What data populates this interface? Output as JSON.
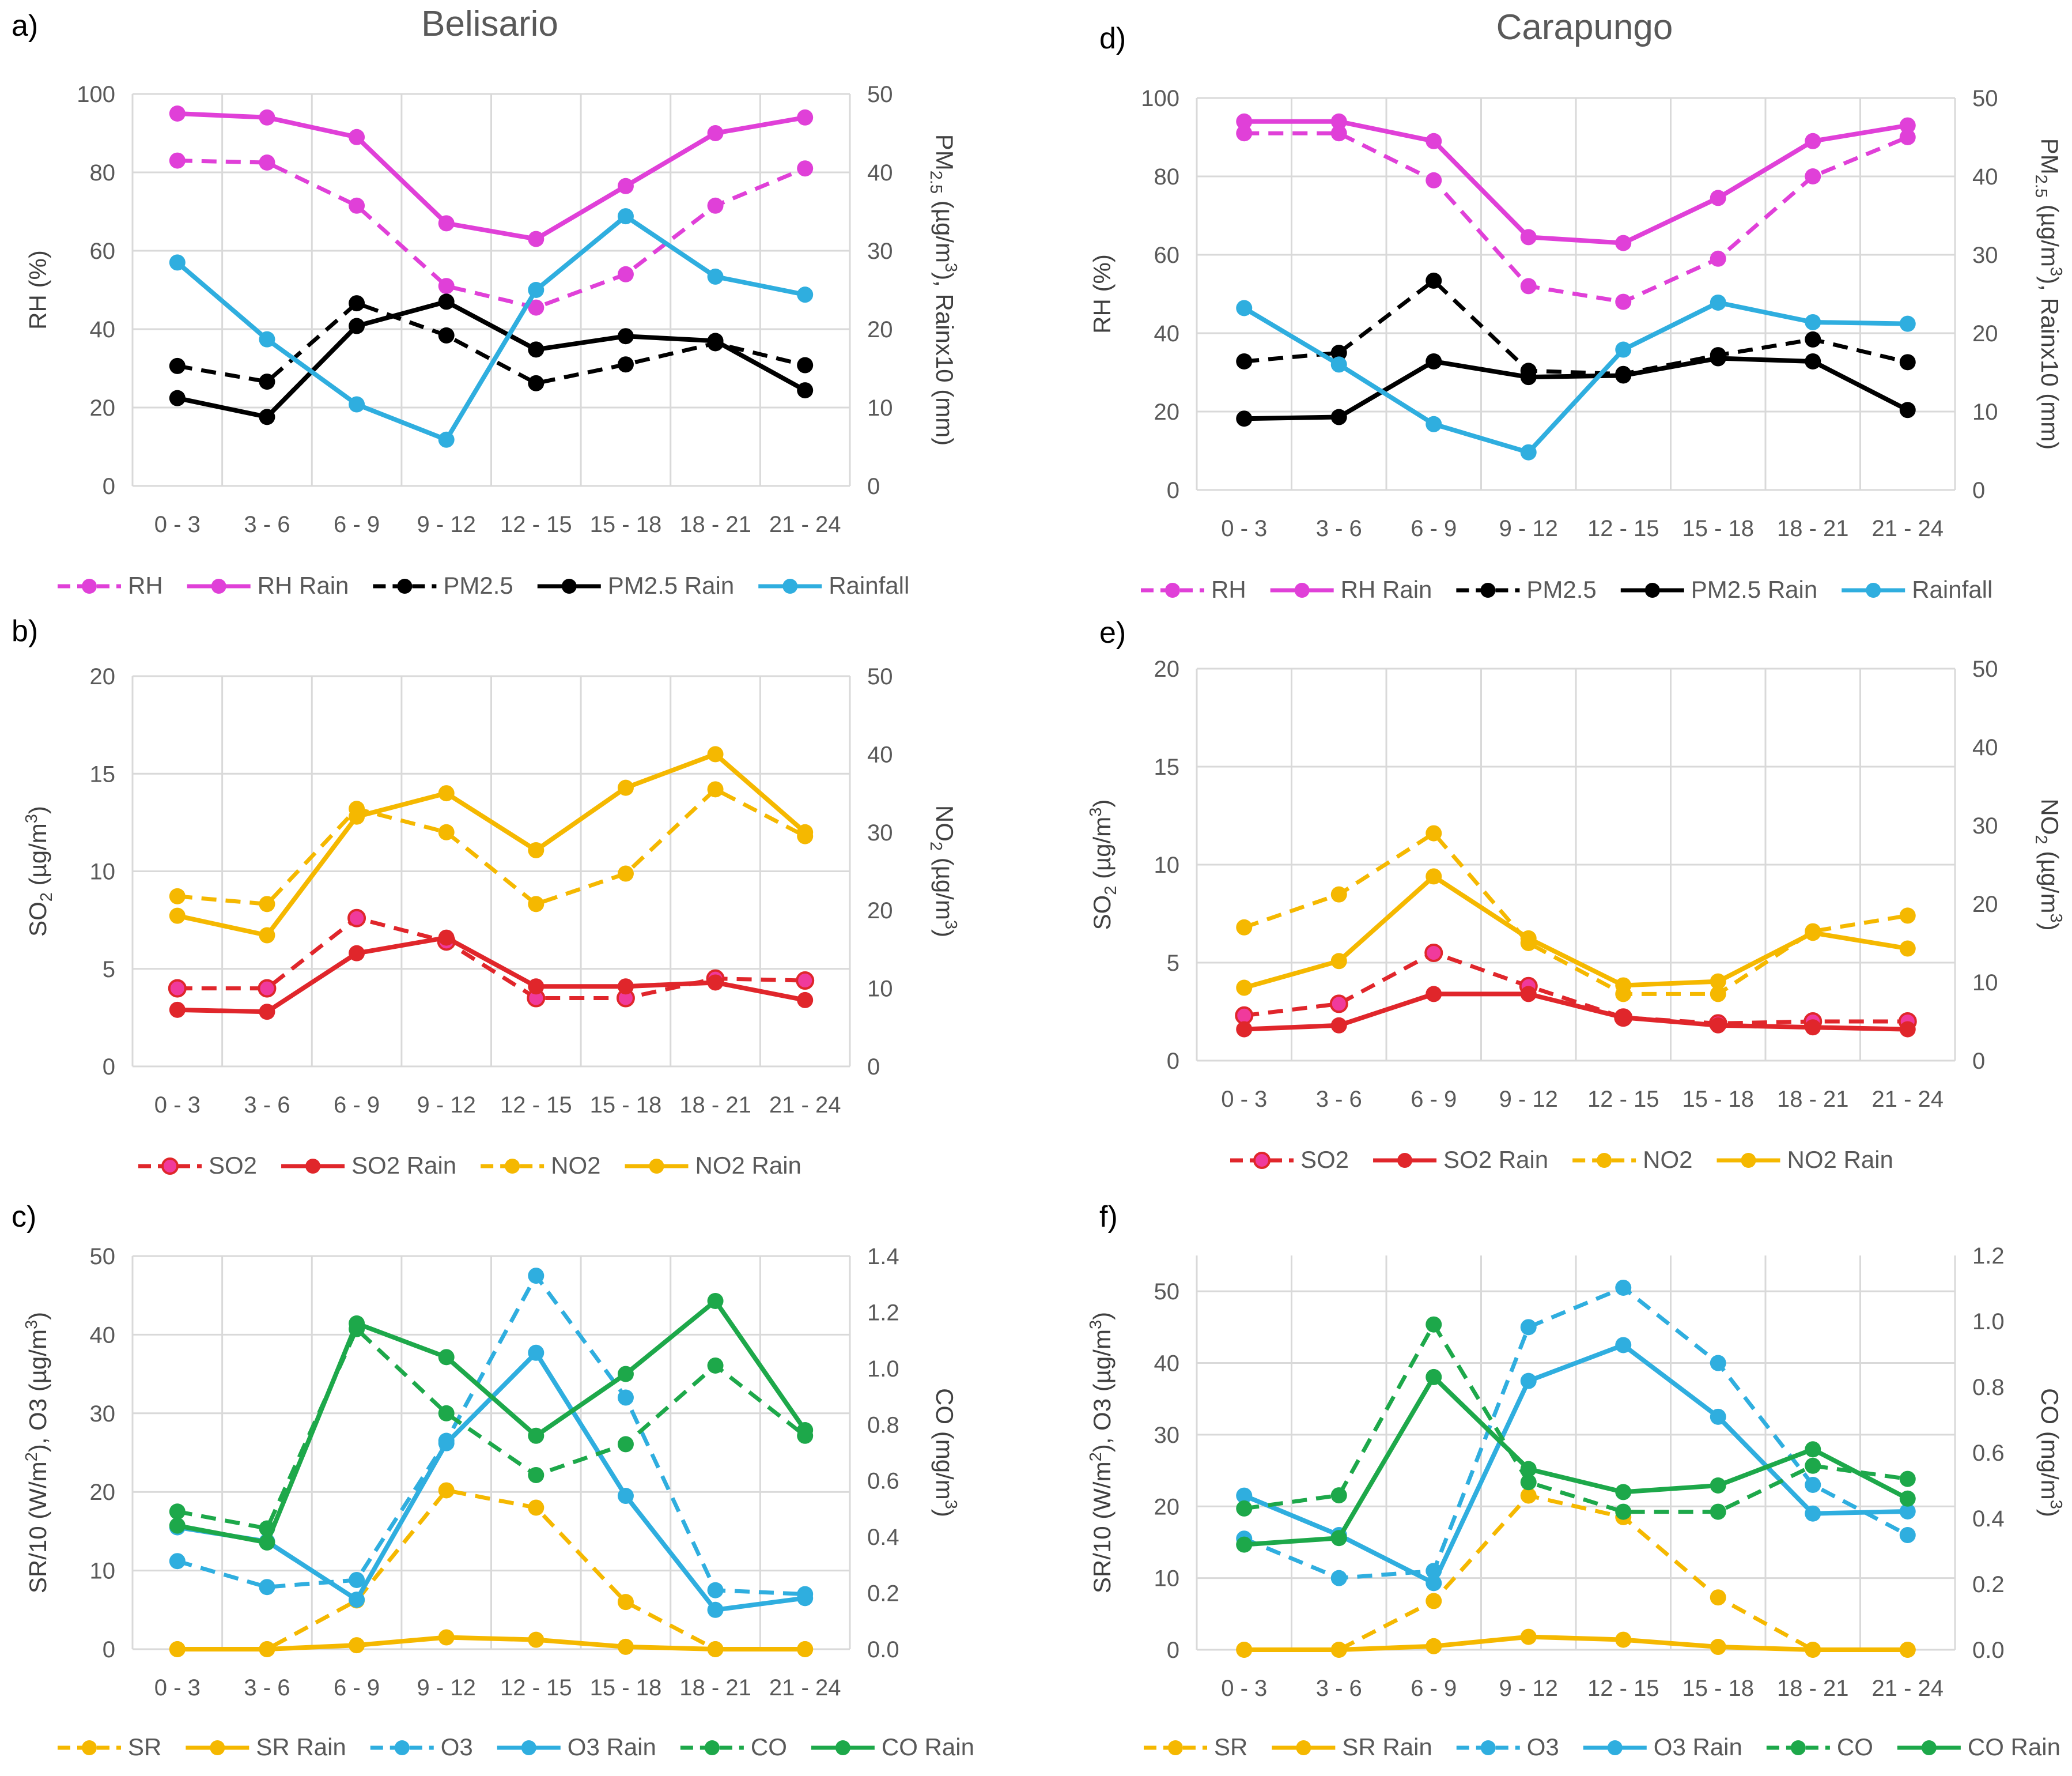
{
  "chart_data": [
    {
      "panel": "a)",
      "type": "line",
      "title": "Belisario",
      "categories": [
        "0 - 3",
        "3 - 6",
        "6 - 9",
        "9 - 12",
        "12 - 15",
        "15 - 18",
        "18 - 21",
        "21 - 24"
      ],
      "ylabel": "RH (%)",
      "ylabel_right": "PM2.5 (µg/m3), Rainx10 (mm)",
      "ylim": [
        0,
        100
      ],
      "yticks": [
        0,
        20,
        40,
        60,
        80,
        100
      ],
      "ylim_right": [
        0,
        50
      ],
      "yticks_right": [
        0,
        10,
        20,
        30,
        40,
        50
      ],
      "series": [
        {
          "name": "RH",
          "axis": "left",
          "color": "#E040D8",
          "dashed": true,
          "values": [
            83,
            82.5,
            71.5,
            51,
            45.5,
            54,
            71.5,
            81
          ]
        },
        {
          "name": "RH Rain",
          "axis": "left",
          "color": "#E040D8",
          "dashed": false,
          "values": [
            95,
            94,
            89,
            67,
            63,
            76.5,
            90,
            94
          ]
        },
        {
          "name": "PM2.5",
          "axis": "right",
          "color": "#000000",
          "dashed": true,
          "values": [
            15.3,
            13.3,
            23.3,
            19.2,
            13.1,
            15.5,
            18.2,
            15.4
          ]
        },
        {
          "name": "PM2.5 Rain",
          "axis": "right",
          "color": "#000000",
          "dashed": false,
          "values": [
            11.2,
            8.8,
            20.4,
            23.5,
            17.4,
            19.1,
            18.5,
            12.2
          ]
        },
        {
          "name": "Rainfall",
          "axis": "right",
          "color": "#2FAEDF",
          "dashed": false,
          "values": [
            28.5,
            18.7,
            10.4,
            5.9,
            25,
            34.4,
            26.7,
            24.4
          ]
        }
      ]
    },
    {
      "panel": "b)",
      "type": "line",
      "categories": [
        "0 - 3",
        "3 - 6",
        "6 - 9",
        "9 - 12",
        "12 - 15",
        "15 - 18",
        "18 - 21",
        "21 - 24"
      ],
      "ylabel": "SO2 (µg/m3)",
      "ylabel_right": "NO2 (µg/m3)",
      "ylim": [
        0,
        20
      ],
      "yticks": [
        0,
        5,
        10,
        15,
        20
      ],
      "ylim_right": [
        0,
        50
      ],
      "yticks_right": [
        0,
        10,
        20,
        30,
        40,
        50
      ],
      "series": [
        {
          "name": "SO2",
          "axis": "left",
          "color": "#E0262B",
          "marker_fill": "#F03A9C",
          "dashed": true,
          "values": [
            4,
            4,
            7.6,
            6.4,
            3.5,
            3.5,
            4.5,
            4.4
          ]
        },
        {
          "name": "SO2 Rain",
          "axis": "left",
          "color": "#E0262B",
          "dashed": false,
          "values": [
            2.9,
            2.8,
            5.8,
            6.6,
            4.1,
            4.1,
            4.3,
            3.4
          ]
        },
        {
          "name": "NO2",
          "axis": "right",
          "color": "#F5B800",
          "dashed": true,
          "values": [
            21.8,
            20.8,
            33,
            30,
            20.8,
            24.7,
            35.5,
            29.5
          ]
        },
        {
          "name": "NO2 Rain",
          "axis": "right",
          "color": "#F5B800",
          "dashed": false,
          "values": [
            19.3,
            16.8,
            32,
            35,
            27.7,
            35.7,
            40,
            30
          ]
        }
      ]
    },
    {
      "panel": "c)",
      "type": "line",
      "categories": [
        "0 - 3",
        "3 - 6",
        "6 - 9",
        "9 - 12",
        "12 - 15",
        "15 - 18",
        "18 - 21",
        "21 - 24"
      ],
      "ylabel": "SR/10 (W/m2), O3 (µg/m3)",
      "ylabel_right": "CO (mg/m3)",
      "ylim": [
        0,
        50
      ],
      "yticks": [
        0,
        10,
        20,
        30,
        40,
        50
      ],
      "ylim_right": [
        0,
        1.4
      ],
      "yticks_right": [
        "0.0",
        "0.2",
        "0.4",
        "0.6",
        "0.8",
        "1.0",
        "1.2",
        "1.4"
      ],
      "series": [
        {
          "name": "SR",
          "axis": "left",
          "color": "#F5B800",
          "dashed": true,
          "values": [
            0,
            0,
            6.2,
            20.2,
            18,
            6,
            0,
            0
          ]
        },
        {
          "name": "SR Rain",
          "axis": "left",
          "color": "#F5B800",
          "dashed": false,
          "values": [
            0,
            0,
            0.5,
            1.5,
            1.2,
            0.3,
            0,
            0
          ]
        },
        {
          "name": "O3",
          "axis": "left",
          "color": "#2FAEDF",
          "dashed": true,
          "values": [
            11.2,
            7.9,
            8.8,
            26.5,
            47.5,
            32,
            7.5,
            7
          ]
        },
        {
          "name": "O3 Rain",
          "axis": "left",
          "color": "#2FAEDF",
          "dashed": false,
          "values": [
            15.5,
            13.7,
            6.3,
            26.2,
            37.7,
            19.5,
            5,
            6.5
          ]
        },
        {
          "name": "CO",
          "axis": "right",
          "color": "#1DA84A",
          "dashed": true,
          "values": [
            0.49,
            0.43,
            1.14,
            0.84,
            0.62,
            0.73,
            1.01,
            0.76
          ]
        },
        {
          "name": "CO Rain",
          "axis": "right",
          "color": "#1DA84A",
          "dashed": false,
          "values": [
            0.44,
            0.38,
            1.16,
            1.04,
            0.76,
            0.98,
            1.24,
            0.78
          ]
        }
      ]
    },
    {
      "panel": "d)",
      "type": "line",
      "title": "Carapungo",
      "categories": [
        "0 - 3",
        "3 - 6",
        "6 - 9",
        "9 - 12",
        "12 - 15",
        "15 - 18",
        "18 - 21",
        "21 - 24"
      ],
      "ylabel": "RH (%)",
      "ylabel_right": "PM2.5 (µg/m3), Rainx10 (mm)",
      "ylim": [
        0,
        100
      ],
      "yticks": [
        0,
        20,
        40,
        60,
        80,
        100
      ],
      "ylim_right": [
        0,
        50
      ],
      "yticks_right": [
        0,
        10,
        20,
        30,
        40,
        50
      ],
      "series": [
        {
          "name": "RH",
          "axis": "left",
          "color": "#E040D8",
          "dashed": true,
          "values": [
            91,
            91,
            79,
            52,
            48,
            59,
            80,
            90
          ]
        },
        {
          "name": "RH Rain",
          "axis": "left",
          "color": "#E040D8",
          "dashed": false,
          "values": [
            94,
            94,
            89,
            64.5,
            63,
            74.5,
            89,
            93
          ]
        },
        {
          "name": "PM2.5",
          "axis": "right",
          "color": "#000000",
          "dashed": true,
          "values": [
            16.4,
            17.5,
            26.7,
            15.2,
            14.8,
            17.2,
            19.2,
            16.3
          ]
        },
        {
          "name": "PM2.5 Rain",
          "axis": "right",
          "color": "#000000",
          "dashed": false,
          "values": [
            9.1,
            9.3,
            16.4,
            14.4,
            14.6,
            16.8,
            16.4,
            10.2
          ]
        },
        {
          "name": "Rainfall",
          "axis": "right",
          "color": "#2FAEDF",
          "dashed": false,
          "values": [
            23.2,
            16,
            8.4,
            4.8,
            17.9,
            23.9,
            21.4,
            21.2
          ]
        }
      ]
    },
    {
      "panel": "e)",
      "type": "line",
      "categories": [
        "0 - 3",
        "3 - 6",
        "6 - 9",
        "9 - 12",
        "12 - 15",
        "15 - 18",
        "18 - 21",
        "21 - 24"
      ],
      "ylabel": "SO2 (µg/m3)",
      "ylabel_right": "NO2 (µg/m3)",
      "ylim": [
        0,
        20
      ],
      "yticks": [
        0,
        5,
        10,
        15,
        20
      ],
      "ylim_right": [
        0,
        50
      ],
      "yticks_right": [
        0,
        10,
        20,
        30,
        40,
        50
      ],
      "series": [
        {
          "name": "SO2",
          "axis": "left",
          "color": "#E0262B",
          "marker_fill": "#F03A9C",
          "dashed": true,
          "values": [
            2.3,
            2.9,
            5.5,
            3.8,
            2.2,
            1.9,
            2,
            2
          ]
        },
        {
          "name": "SO2 Rain",
          "axis": "left",
          "color": "#E0262B",
          "dashed": false,
          "values": [
            1.6,
            1.8,
            3.4,
            3.4,
            2.2,
            1.8,
            1.7,
            1.6
          ]
        },
        {
          "name": "NO2",
          "axis": "right",
          "color": "#F5B800",
          "dashed": true,
          "values": [
            17,
            21.2,
            29,
            15,
            8.5,
            8.5,
            16.5,
            18.5
          ]
        },
        {
          "name": "NO2 Rain",
          "axis": "right",
          "color": "#F5B800",
          "dashed": false,
          "values": [
            9.3,
            12.7,
            23.5,
            15.6,
            9.6,
            10.1,
            16.3,
            14.3
          ]
        }
      ]
    },
    {
      "panel": "f)",
      "type": "line",
      "categories": [
        "0 - 3",
        "3 - 6",
        "6 - 9",
        "9 - 12",
        "12 - 15",
        "15 - 18",
        "18 - 21",
        "21 - 24"
      ],
      "ylabel": "SR/10 (W/m2), O3 (µg/m3)",
      "ylabel_right": "CO (mg/m3)",
      "ylim": [
        0,
        55
      ],
      "yticks": [
        0,
        10,
        20,
        30,
        40,
        50
      ],
      "ylim_right": [
        0,
        1.2
      ],
      "yticks_right": [
        "0.0",
        "0.2",
        "0.4",
        "0.6",
        "0.8",
        "1.0",
        "1.2"
      ],
      "series": [
        {
          "name": "SR",
          "axis": "left",
          "color": "#F5B800",
          "dashed": true,
          "values": [
            0,
            0,
            6.8,
            21.5,
            18.5,
            7.3,
            0,
            0
          ]
        },
        {
          "name": "SR Rain",
          "axis": "left",
          "color": "#F5B800",
          "dashed": false,
          "values": [
            0,
            0,
            0.5,
            1.8,
            1.4,
            0.4,
            0,
            0
          ]
        },
        {
          "name": "O3",
          "axis": "left",
          "color": "#2FAEDF",
          "dashed": true,
          "values": [
            15.5,
            10,
            11,
            45,
            50.5,
            40,
            23,
            16
          ]
        },
        {
          "name": "O3 Rain",
          "axis": "left",
          "color": "#2FAEDF",
          "dashed": false,
          "values": [
            21.5,
            16,
            9.3,
            37.5,
            42.5,
            32.5,
            19,
            19.3
          ]
        },
        {
          "name": "CO",
          "axis": "right",
          "color": "#1DA84A",
          "dashed": true,
          "values": [
            0.43,
            0.47,
            0.99,
            0.51,
            0.42,
            0.42,
            0.56,
            0.52
          ]
        },
        {
          "name": "CO Rain",
          "axis": "right",
          "color": "#1DA84A",
          "dashed": false,
          "values": [
            0.32,
            0.34,
            0.83,
            0.55,
            0.48,
            0.5,
            0.61,
            0.46
          ]
        }
      ]
    }
  ]
}
